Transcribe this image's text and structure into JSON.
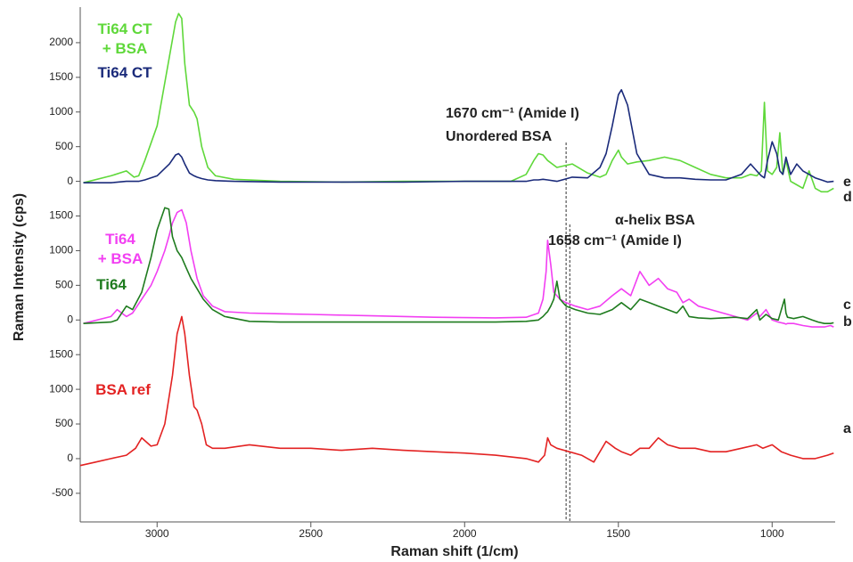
{
  "chart_data": [
    {
      "type": "line",
      "x": [
        3240,
        3150,
        3100,
        3075,
        3060,
        3040,
        3000,
        2960,
        2940,
        2930,
        2920,
        2910,
        2895,
        2880,
        2870,
        2855,
        2835,
        2810,
        2750,
        2600,
        2400,
        2200,
        2000,
        1850,
        1800,
        1775,
        1760,
        1745,
        1730,
        1700,
        1650,
        1600,
        1560,
        1540,
        1520,
        1500,
        1490,
        1470,
        1440,
        1400,
        1350,
        1300,
        1250,
        1200,
        1150,
        1100,
        1070,
        1050,
        1035,
        1025,
        1015,
        1000,
        985,
        975,
        965,
        955,
        940,
        920,
        900,
        880,
        860,
        840,
        820,
        800
      ],
      "xlim": [
        3250,
        795
      ],
      "ylim": [
        -200,
        2500
      ],
      "yticks": [
        0,
        500,
        1000,
        1500,
        2000
      ],
      "annotations": [
        "1670 cm⁻¹ (Amide I)",
        "Unordered BSA"
      ],
      "marker_lines": [
        1670
      ],
      "series": [
        {
          "name": "Ti64 CT\n+ BSA",
          "tag": "e",
          "color": "#5fd83a",
          "values": [
            -20,
            80,
            150,
            60,
            80,
            300,
            800,
            1800,
            2300,
            2420,
            2350,
            1700,
            1100,
            1000,
            900,
            500,
            200,
            80,
            30,
            0,
            -10,
            0,
            0,
            0,
            100,
            300,
            400,
            380,
            300,
            200,
            250,
            120,
            60,
            100,
            300,
            450,
            350,
            250,
            280,
            300,
            350,
            300,
            200,
            100,
            50,
            50,
            100,
            80,
            150,
            1140,
            150,
            100,
            200,
            700,
            100,
            300,
            0,
            -50,
            -100,
            150,
            -100,
            -150,
            -150,
            -100
          ]
        },
        {
          "name": "Ti64 CT",
          "tag": "d",
          "color": "#1a2a7a",
          "values": [
            -20,
            -20,
            0,
            0,
            0,
            20,
            80,
            250,
            380,
            400,
            350,
            250,
            120,
            80,
            60,
            40,
            20,
            10,
            0,
            -10,
            -10,
            -10,
            0,
            0,
            0,
            20,
            20,
            30,
            20,
            0,
            60,
            50,
            200,
            400,
            800,
            1250,
            1320,
            1100,
            400,
            100,
            50,
            50,
            30,
            20,
            20,
            100,
            250,
            150,
            80,
            50,
            300,
            570,
            400,
            150,
            100,
            350,
            100,
            250,
            150,
            100,
            50,
            20,
            -10,
            0
          ]
        }
      ]
    },
    {
      "type": "line",
      "x": [
        3240,
        3150,
        3130,
        3100,
        3080,
        3050,
        3020,
        3000,
        2975,
        2962,
        2950,
        2935,
        2920,
        2905,
        2890,
        2870,
        2850,
        2820,
        2780,
        2700,
        2600,
        2500,
        2300,
        2100,
        1900,
        1800,
        1760,
        1745,
        1735,
        1730,
        1720,
        1710,
        1700,
        1690,
        1670,
        1640,
        1600,
        1560,
        1520,
        1490,
        1460,
        1430,
        1400,
        1370,
        1340,
        1310,
        1290,
        1270,
        1240,
        1200,
        1160,
        1120,
        1080,
        1050,
        1040,
        1020,
        1000,
        980,
        960,
        955,
        950,
        930,
        900,
        870,
        850,
        830,
        810,
        800
      ],
      "xlim": [
        3250,
        795
      ],
      "ylim": [
        -200,
        1800
      ],
      "yticks": [
        0,
        500,
        1000,
        1500
      ],
      "y_label": "Raman Intensity (cps)",
      "annotations": [
        "α-helix BSA",
        "1658 cm⁻¹ (Amide I)"
      ],
      "marker_lines": [
        1658
      ],
      "series": [
        {
          "name": "Ti64\n+ BSA",
          "tag": "c",
          "color": "#f23ff2",
          "values": [
            -50,
            50,
            150,
            50,
            100,
            300,
            500,
            700,
            1000,
            1200,
            1400,
            1550,
            1590,
            1400,
            1000,
            600,
            350,
            200,
            120,
            100,
            90,
            80,
            60,
            40,
            30,
            40,
            100,
            300,
            700,
            1150,
            800,
            400,
            350,
            300,
            250,
            200,
            150,
            200,
            350,
            450,
            350,
            700,
            500,
            600,
            450,
            400,
            250,
            300,
            200,
            150,
            100,
            50,
            0,
            100,
            50,
            150,
            0,
            -30,
            -50,
            -60,
            -50,
            -50,
            -80,
            -100,
            -100,
            -100,
            -80,
            -100
          ]
        },
        {
          "name": "Ti64",
          "tag": "b",
          "color": "#1e7b1e",
          "values": [
            -50,
            -30,
            0,
            200,
            150,
            400,
            900,
            1300,
            1620,
            1600,
            1200,
            1000,
            900,
            750,
            600,
            450,
            300,
            150,
            50,
            -20,
            -30,
            -30,
            -30,
            -30,
            -30,
            -20,
            0,
            50,
            100,
            120,
            200,
            300,
            560,
            300,
            200,
            150,
            100,
            80,
            150,
            250,
            150,
            300,
            250,
            200,
            150,
            100,
            200,
            50,
            30,
            20,
            30,
            40,
            20,
            150,
            0,
            80,
            20,
            0,
            300,
            100,
            40,
            20,
            50,
            0,
            -30,
            -50,
            -50,
            -40
          ]
        }
      ]
    },
    {
      "type": "line",
      "x": [
        3250,
        3200,
        3150,
        3100,
        3070,
        3050,
        3020,
        3000,
        2975,
        2950,
        2935,
        2920,
        2910,
        2895,
        2880,
        2870,
        2855,
        2840,
        2820,
        2780,
        2700,
        2600,
        2500,
        2400,
        2300,
        2200,
        2100,
        2000,
        1900,
        1800,
        1760,
        1740,
        1730,
        1720,
        1700,
        1660,
        1620,
        1580,
        1540,
        1510,
        1490,
        1460,
        1430,
        1400,
        1370,
        1340,
        1300,
        1250,
        1200,
        1150,
        1100,
        1050,
        1030,
        1000,
        970,
        940,
        900,
        860,
        820,
        800
      ],
      "xlim": [
        3250,
        795
      ],
      "ylim": [
        -900,
        1800
      ],
      "yticks": [
        -500,
        0,
        500,
        1000,
        1500
      ],
      "xticks": [
        3000,
        2500,
        2000,
        1500,
        1000
      ],
      "x_label": "Raman shift (1/cm)",
      "series": [
        {
          "name": "BSA ref",
          "tag": "a",
          "color": "#e32222",
          "values": [
            -100,
            -50,
            0,
            50,
            150,
            300,
            180,
            200,
            500,
            1200,
            1800,
            2050,
            1800,
            1200,
            750,
            700,
            500,
            200,
            150,
            150,
            200,
            150,
            150,
            120,
            150,
            120,
            100,
            80,
            50,
            0,
            -50,
            50,
            300,
            200,
            150,
            100,
            50,
            -50,
            250,
            150,
            100,
            50,
            150,
            150,
            300,
            200,
            150,
            150,
            100,
            100,
            150,
            200,
            150,
            200,
            100,
            50,
            0,
            0,
            50,
            80
          ]
        }
      ]
    }
  ]
}
